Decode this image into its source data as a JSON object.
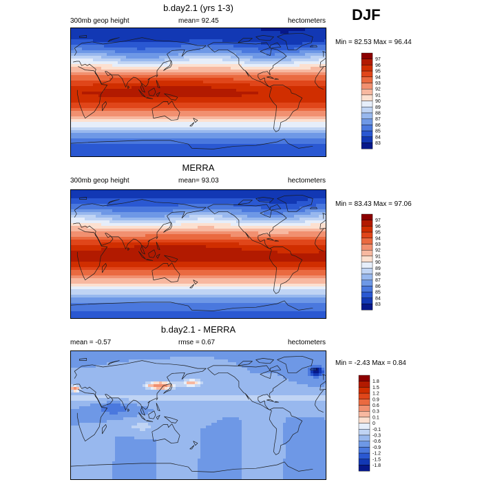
{
  "season": "DJF",
  "panels": [
    {
      "id": "model",
      "title": "b.day2.1 (yrs 1-3)",
      "left_label": "300mb geop height",
      "center_label": "mean=  92.45",
      "right_label": "hectometers",
      "minmax": "Min =  82.53 Max =  96.44",
      "colorbar_labels": [
        "97",
        "96",
        "95",
        "94",
        "93",
        "92",
        "91",
        "90",
        "89",
        "88",
        "87",
        "86",
        "85",
        "84",
        "83"
      ],
      "field": {
        "type": "height",
        "pole": 83.0,
        "equator": 96.2,
        "sh_pole": 84.0
      }
    },
    {
      "id": "obs",
      "title": "MERRA",
      "left_label": "300mb geop height",
      "center_label": "mean=  93.03",
      "right_label": "hectometers",
      "minmax": "Min =  83.43 Max =  97.06",
      "colorbar_labels": [
        "97",
        "96",
        "95",
        "94",
        "93",
        "92",
        "91",
        "90",
        "89",
        "88",
        "87",
        "86",
        "85",
        "84",
        "83"
      ],
      "field": {
        "type": "height",
        "pole": 83.6,
        "equator": 96.6,
        "sh_pole": 84.6
      }
    },
    {
      "id": "diff",
      "title": "b.day2.1 - MERRA",
      "left_label": "mean =  -0.57",
      "center_label": "rmse =   0.67",
      "right_label": "hectometers",
      "minmax": "Min =  -2.43 Max =   0.84",
      "colorbar_labels": [
        "1.8",
        "1.5",
        "1.2",
        "0.9",
        "0.6",
        "0.3",
        "0.1",
        "0",
        "-0.1",
        "-0.3",
        "-0.6",
        "-0.9",
        "-1.2",
        "-1.5",
        "-1.8"
      ],
      "field": {
        "type": "diff"
      }
    }
  ],
  "colors": {
    "ramp16": [
      "#8c0000",
      "#b21a00",
      "#d02e00",
      "#e0461a",
      "#ea6a40",
      "#f19070",
      "#f7b8a0",
      "#fce0d0",
      "#e6eefa",
      "#c0d4f4",
      "#98b8ee",
      "#6e98e6",
      "#4a78de",
      "#2a58d2",
      "#1238b4",
      "#06188a"
    ],
    "coast": "#1a1a1a"
  }
}
